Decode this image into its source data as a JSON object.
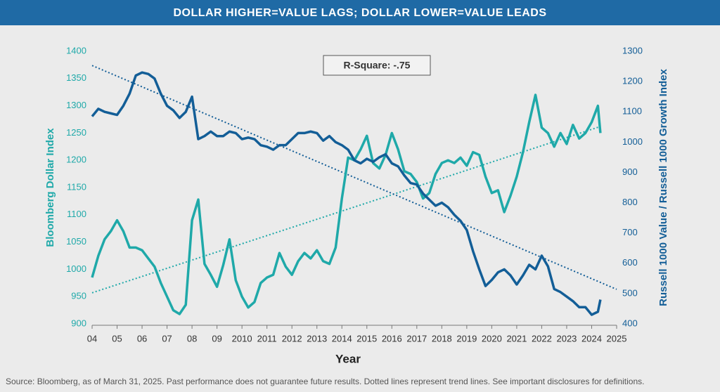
{
  "chart_data": {
    "type": "line",
    "title": "DOLLAR HIGHER=VALUE LAGS; DOLLAR LOWER=VALUE LEADS",
    "annotation": "R-Square: -.75",
    "source": "Source: Bloomberg, as of March 31, 2025. Past performance does not guarantee future results. Dotted lines represent trend lines. See important disclosures for definitions.",
    "x_label": "Year",
    "y_label": "Bloomberg Dollar Index",
    "y2_label": "Russell 1000 Value / Russell 1000 Growth Index",
    "xlim": [
      2004,
      2025
    ],
    "xticks": [
      {
        "value": 2004,
        "label": "04"
      },
      {
        "value": 2005,
        "label": "05"
      },
      {
        "value": 2006,
        "label": "06"
      },
      {
        "value": 2007,
        "label": "07"
      },
      {
        "value": 2008,
        "label": "08"
      },
      {
        "value": 2009,
        "label": "09"
      },
      2010,
      2011,
      2012,
      2013,
      2014,
      2015,
      2016,
      2017,
      2018,
      2019,
      2020,
      2021,
      2022,
      2023,
      2024,
      2025
    ],
    "ylim": [
      900,
      1400
    ],
    "yticks": [
      900,
      950,
      1000,
      1050,
      1100,
      1150,
      1200,
      1250,
      1300,
      1350,
      1400
    ],
    "y2lim": [
      400,
      1300
    ],
    "y2ticks": [
      400,
      500,
      600,
      700,
      800,
      900,
      1000,
      1100,
      1200,
      1300
    ],
    "x": [
      2004,
      2004.25,
      2004.5,
      2004.75,
      2005,
      2005.25,
      2005.5,
      2005.75,
      2006,
      2006.25,
      2006.5,
      2006.75,
      2007,
      2007.25,
      2007.5,
      2007.75,
      2008,
      2008.25,
      2008.5,
      2008.75,
      2009,
      2009.25,
      2009.5,
      2009.75,
      2010,
      2010.25,
      2010.5,
      2010.75,
      2011,
      2011.25,
      2011.5,
      2011.75,
      2012,
      2012.25,
      2012.5,
      2012.75,
      2013,
      2013.25,
      2013.5,
      2013.75,
      2014,
      2014.25,
      2014.5,
      2014.75,
      2015,
      2015.25,
      2015.5,
      2015.75,
      2016,
      2016.25,
      2016.5,
      2016.75,
      2017,
      2017.25,
      2017.5,
      2017.75,
      2018,
      2018.25,
      2018.5,
      2018.75,
      2019,
      2019.25,
      2019.5,
      2019.75,
      2020,
      2020.25,
      2020.5,
      2020.75,
      2021,
      2021.25,
      2021.5,
      2021.75,
      2022,
      2022.25,
      2022.5,
      2022.75,
      2023,
      2023.25,
      2023.5,
      2023.75,
      2024,
      2024.25,
      2024.35
    ],
    "series": [
      {
        "name": "Bloomberg Dollar Index",
        "color": "#1fa9a9",
        "axis": "y",
        "values": [
          985,
          1025,
          1055,
          1070,
          1090,
          1070,
          1040,
          1040,
          1035,
          1020,
          1005,
          975,
          950,
          925,
          918,
          935,
          1090,
          1128,
          1010,
          990,
          968,
          1008,
          1055,
          980,
          950,
          930,
          940,
          975,
          985,
          990,
          1030,
          1005,
          990,
          1015,
          1030,
          1020,
          1035,
          1015,
          1010,
          1040,
          1130,
          1205,
          1200,
          1220,
          1245,
          1195,
          1185,
          1210,
          1250,
          1220,
          1180,
          1175,
          1160,
          1130,
          1140,
          1175,
          1195,
          1200,
          1195,
          1205,
          1190,
          1215,
          1210,
          1170,
          1140,
          1145,
          1105,
          1135,
          1170,
          1215,
          1270,
          1320,
          1260,
          1250,
          1225,
          1250,
          1230,
          1265,
          1240,
          1250,
          1270,
          1300,
          1250
        ]
      },
      {
        "name": "Russell 1000 Value / Russell 1000 Growth Index",
        "color": "#135e97",
        "axis": "y2",
        "values": [
          1085,
          1110,
          1100,
          1095,
          1090,
          1120,
          1160,
          1220,
          1230,
          1225,
          1210,
          1160,
          1120,
          1105,
          1080,
          1100,
          1150,
          1010,
          1020,
          1035,
          1020,
          1020,
          1035,
          1030,
          1010,
          1015,
          1010,
          990,
          985,
          975,
          990,
          990,
          1010,
          1030,
          1030,
          1035,
          1030,
          1005,
          1020,
          1000,
          990,
          975,
          940,
          930,
          945,
          935,
          950,
          960,
          930,
          920,
          890,
          865,
          860,
          830,
          810,
          790,
          800,
          785,
          760,
          740,
          710,
          640,
          580,
          525,
          545,
          570,
          580,
          560,
          530,
          560,
          595,
          580,
          625,
          590,
          515,
          505,
          490,
          475,
          455,
          455,
          430,
          440,
          480
        ]
      }
    ],
    "trend_lines": [
      {
        "color": "#1fa9a9",
        "axis": "y",
        "x": [
          2004,
          2024.35
        ],
        "values": [
          957,
          1262
        ]
      },
      {
        "color": "#135e97",
        "axis": "y2",
        "x": [
          2004,
          2025
        ],
        "values": [
          1253,
          514
        ]
      }
    ]
  }
}
